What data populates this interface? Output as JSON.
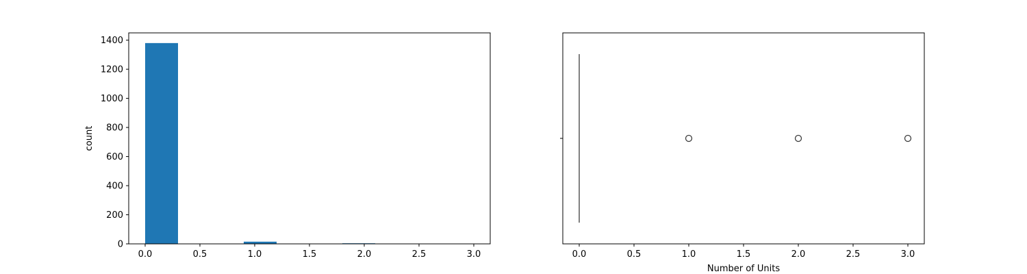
{
  "chart_data": [
    {
      "type": "bar",
      "subtype": "histogram",
      "ylabel": "count",
      "xlabel": "",
      "xlim": [
        -0.15,
        3.15
      ],
      "ylim": [
        0,
        1450
      ],
      "xticks": [
        "0.0",
        "0.5",
        "1.0",
        "1.5",
        "2.0",
        "2.5",
        "3.0"
      ],
      "yticks": [
        "0",
        "200",
        "400",
        "600",
        "800",
        "1000",
        "1200",
        "1400"
      ],
      "bins": [
        {
          "x0": 0.0,
          "x1": 0.3,
          "count": 1380
        },
        {
          "x0": 0.3,
          "x1": 0.6,
          "count": 0
        },
        {
          "x0": 0.6,
          "x1": 0.9,
          "count": 0
        },
        {
          "x0": 0.9,
          "x1": 1.2,
          "count": 15
        },
        {
          "x0": 1.2,
          "x1": 1.5,
          "count": 0
        },
        {
          "x0": 1.5,
          "x1": 1.8,
          "count": 0
        },
        {
          "x0": 1.8,
          "x1": 2.1,
          "count": 4
        },
        {
          "x0": 2.1,
          "x1": 2.4,
          "count": 0
        },
        {
          "x0": 2.4,
          "x1": 2.7,
          "count": 0
        },
        {
          "x0": 2.7,
          "x1": 3.0,
          "count": 1
        }
      ],
      "bar_color": "#1f77b4",
      "grid": false
    },
    {
      "type": "boxplot",
      "xlabel": "Number of Units",
      "ylabel": "",
      "xlim": [
        -0.15,
        3.15
      ],
      "xticks": [
        "0.0",
        "0.5",
        "1.0",
        "1.5",
        "2.0",
        "2.5",
        "3.0"
      ],
      "box": {
        "q1": 0,
        "median": 0,
        "q3": 0,
        "whisker_low": 0,
        "whisker_high": 0
      },
      "outliers": [
        1,
        2,
        3
      ],
      "grid": false
    }
  ]
}
